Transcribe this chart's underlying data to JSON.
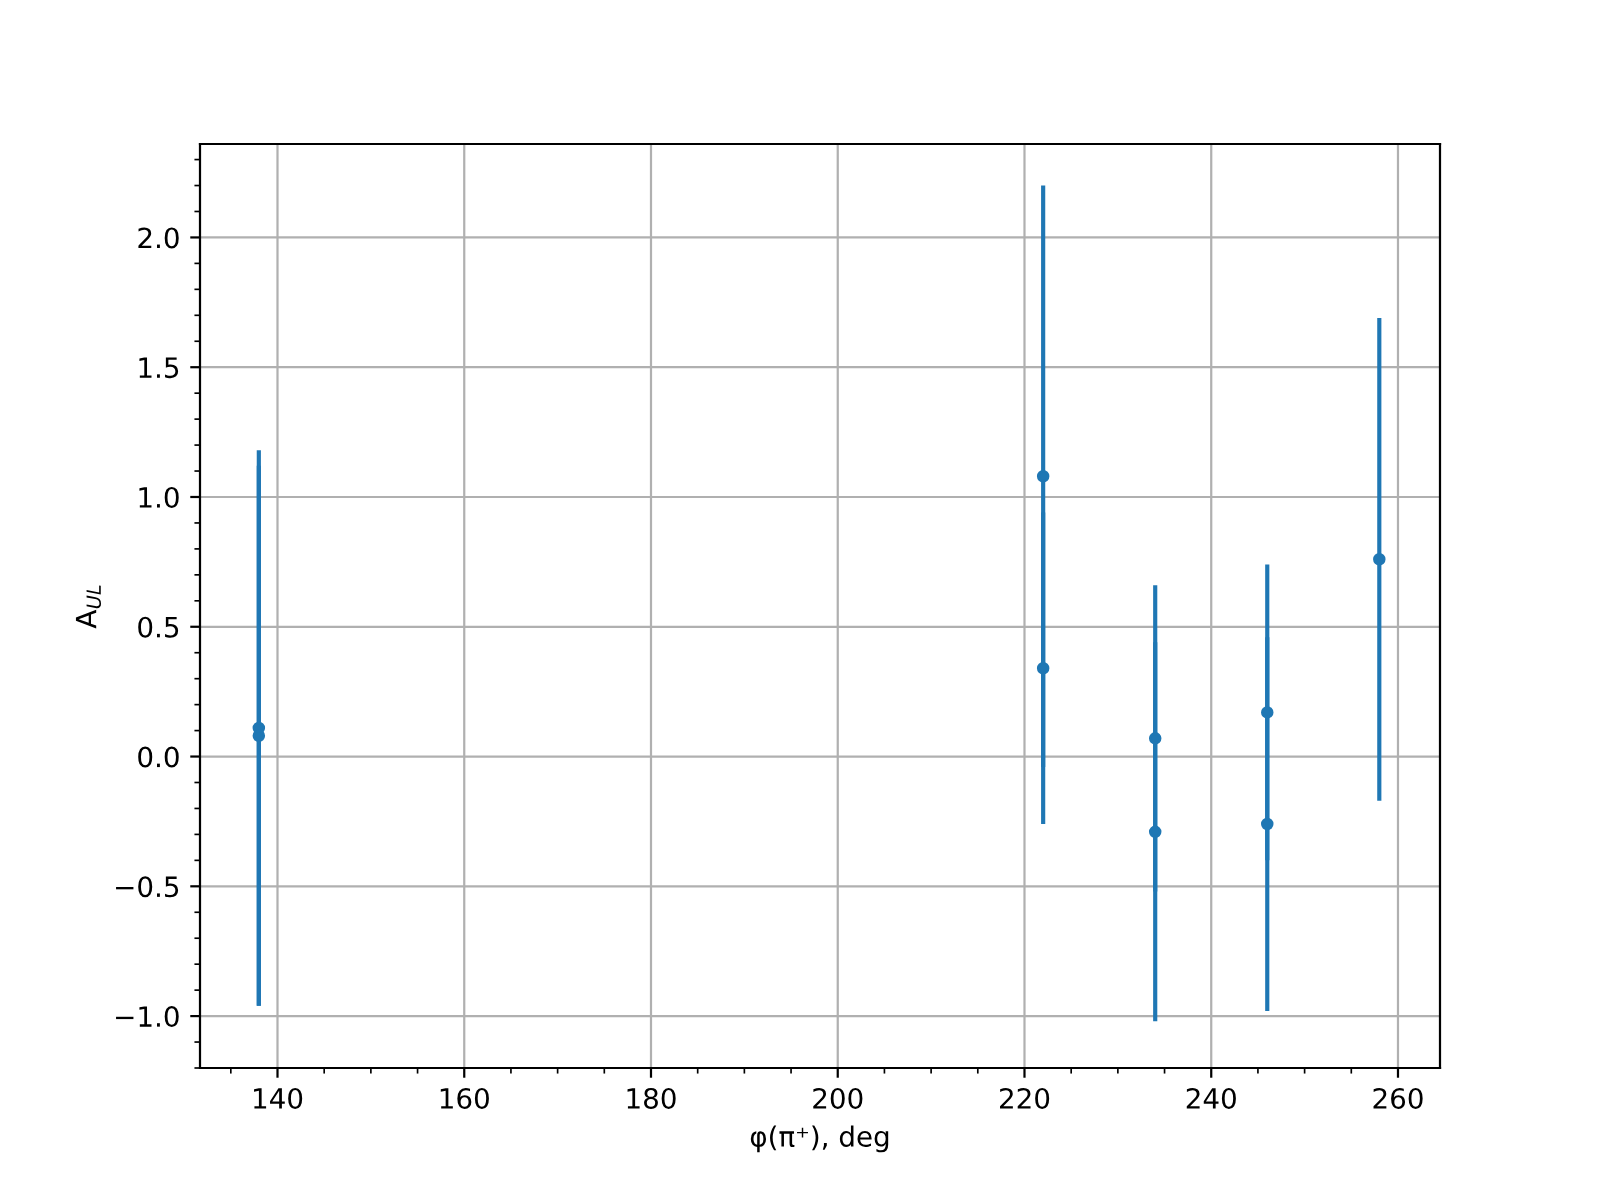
{
  "chart_data": {
    "type": "scatter",
    "xlabel": "φ(π⁺), deg",
    "ylabel": "A$_{UL}$",
    "x": [
      138,
      138,
      222,
      222,
      234,
      234,
      246,
      246,
      258
    ],
    "series": [
      {
        "color": "#1f77b4",
        "marker": "circle",
        "values": [
          0.11,
          0.08,
          1.08,
          0.34,
          0.07,
          -0.29,
          0.17,
          -0.26,
          0.76
        ],
        "errors": [
          1.07,
          1.04,
          1.12,
          0.6,
          0.59,
          0.73,
          0.57,
          0.72,
          0.93
        ]
      }
    ],
    "xlim": [
      131.7,
      264.5
    ],
    "ylim": [
      -1.2,
      2.36
    ],
    "xticks": [
      140,
      160,
      180,
      200,
      220,
      240,
      260
    ],
    "yticks": [
      {
        "value": -1,
        "label": "−1.0"
      },
      {
        "value": -0.5,
        "label": "−0.5"
      },
      {
        "value": 0,
        "label": "0.0"
      },
      {
        "value": 0.5,
        "label": "0.5"
      },
      {
        "value": 1,
        "label": "1.0"
      },
      {
        "value": 1.5,
        "label": "1.5"
      },
      {
        "value": 2,
        "label": "2.0"
      }
    ],
    "grid": true
  }
}
